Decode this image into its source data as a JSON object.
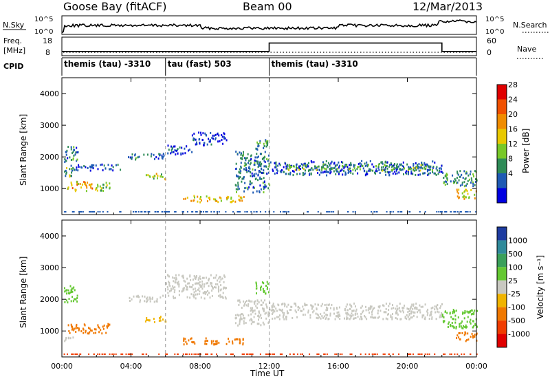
{
  "header": {
    "station": "Goose Bay (fitACF)",
    "beam": "Beam 00",
    "date": "12/Mar/2013"
  },
  "noise_panel": {
    "left_label": "N.Sky",
    "right_label": "N.Search",
    "left_ticks": [
      "10^5",
      "10^0"
    ],
    "right_ticks": [
      "10^5",
      "10^0"
    ]
  },
  "freq_panel": {
    "left_label_line1": "Freq.",
    "left_label_line2": "[MHz]",
    "right_label": "Nave",
    "left_ticks": [
      "18",
      "8"
    ],
    "right_ticks": [
      "60",
      "0"
    ]
  },
  "cpid_panel": {
    "label": "CPID",
    "segments": [
      {
        "start": 0,
        "end": 6,
        "text": "themis (tau) -3310"
      },
      {
        "start": 6,
        "end": 12,
        "text": "tau (fast) 503"
      },
      {
        "start": 12,
        "end": 24,
        "text": "themis (tau) -3310"
      }
    ]
  },
  "power_panel": {
    "ylabel": "Slant Range [km]",
    "colorbar_label": "Power [dB]",
    "colorbar_ticks": [
      "28",
      "24",
      "20",
      "16",
      "12",
      "8",
      "4"
    ],
    "colorbar_colors": [
      "#e00000",
      "#f05000",
      "#f08c00",
      "#e8c800",
      "#78c828",
      "#2e8b57",
      "#1e5ab4",
      "#0000e0"
    ]
  },
  "velocity_panel": {
    "ylabel": "Slant Range [km]",
    "colorbar_label": "Velocity [m s⁻¹]",
    "colorbar_ticks": [
      "1000",
      "500",
      "100",
      "25",
      "-25",
      "-100",
      "-500",
      "-1000"
    ],
    "colorbar_colors": [
      "#1e3ca0",
      "#2f8a9a",
      "#3aa05a",
      "#64c832",
      "#c8c8c0",
      "#f0b400",
      "#f07800",
      "#f03c00",
      "#e00000"
    ]
  },
  "xaxis": {
    "label": "Time UT",
    "ticks": [
      "00:00",
      "04:00",
      "08:00",
      "12:00",
      "16:00",
      "20:00",
      "00:00"
    ]
  },
  "yaxis": {
    "ticks": [
      "1000",
      "2000",
      "3000",
      "4000"
    ]
  },
  "chart_data": {
    "type": "heatmap",
    "title": "Goose Bay (fitACF)",
    "subtitle": "Beam 00",
    "xlabel": "Time UT",
    "ylabel": "Slant Range [km]",
    "xlim": [
      0,
      24
    ],
    "ylim": [
      180,
      4500
    ],
    "xticks": [
      0,
      4,
      8,
      12,
      16,
      20,
      24
    ],
    "yticks": [
      1000,
      2000,
      3000,
      4000
    ],
    "freq_mhz": [
      {
        "start": 0,
        "end": 6,
        "value": 10.3
      },
      {
        "start": 6,
        "end": 12,
        "value": 10.3
      },
      {
        "start": 12,
        "end": 22,
        "value": 14.8
      },
      {
        "start": 22,
        "end": 24,
        "value": 10.3
      }
    ],
    "power_regions": [
      {
        "t": [
          0.1,
          0.9
        ],
        "r": [
          1850,
          2350
        ],
        "db": 10
      },
      {
        "t": [
          0.1,
          0.8
        ],
        "r": [
          1400,
          1700
        ],
        "db": 14
      },
      {
        "t": [
          0.3,
          1.8
        ],
        "r": [
          950,
          1250
        ],
        "db": 22
      },
      {
        "t": [
          1.8,
          2.8
        ],
        "r": [
          950,
          1250
        ],
        "db": 16
      },
      {
        "t": [
          0.5,
          3.5
        ],
        "r": [
          1600,
          1800
        ],
        "db": 8
      },
      {
        "t": [
          3.8,
          6.0
        ],
        "r": [
          1950,
          2150
        ],
        "db": 10
      },
      {
        "t": [
          4.8,
          6.0
        ],
        "r": [
          1300,
          1500
        ],
        "db": 18
      },
      {
        "t": [
          6.0,
          7.5
        ],
        "r": [
          2100,
          2400
        ],
        "db": 6
      },
      {
        "t": [
          7.5,
          9.5
        ],
        "r": [
          2400,
          2800
        ],
        "db": 6
      },
      {
        "t": [
          7.0,
          10.5
        ],
        "r": [
          600,
          800
        ],
        "db": 20
      },
      {
        "t": [
          10.0,
          12.0
        ],
        "r": [
          900,
          2200
        ],
        "db": 10
      },
      {
        "t": [
          11.2,
          12.0
        ],
        "r": [
          2200,
          2600
        ],
        "db": 12
      },
      {
        "t": [
          12.0,
          22.0
        ],
        "r": [
          1450,
          1900
        ],
        "db": 8
      },
      {
        "t": [
          13.0,
          21.5
        ],
        "r": [
          1600,
          1800
        ],
        "db": 14
      },
      {
        "t": [
          22.0,
          24.0
        ],
        "r": [
          1100,
          1600
        ],
        "db": 12
      },
      {
        "t": [
          22.8,
          24.0
        ],
        "r": [
          700,
          1000
        ],
        "db": 20
      }
    ],
    "velocity_regions": [
      {
        "t": [
          0.1,
          0.9
        ],
        "r": [
          1900,
          2450
        ],
        "v": 60
      },
      {
        "t": [
          0.3,
          2.8
        ],
        "r": [
          950,
          1250
        ],
        "v": -150
      },
      {
        "t": [
          0.1,
          0.8
        ],
        "r": [
          700,
          850
        ],
        "v": 0
      },
      {
        "t": [
          3.8,
          6.0
        ],
        "r": [
          1950,
          2150
        ],
        "v": 0
      },
      {
        "t": [
          4.8,
          6.0
        ],
        "r": [
          1300,
          1500
        ],
        "v": -80
      },
      {
        "t": [
          6.0,
          9.5
        ],
        "r": [
          2050,
          2800
        ],
        "v": 0
      },
      {
        "t": [
          7.0,
          10.5
        ],
        "r": [
          600,
          800
        ],
        "v": -200
      },
      {
        "t": [
          10.0,
          12.0
        ],
        "r": [
          1200,
          2000
        ],
        "v": 0
      },
      {
        "t": [
          11.2,
          12.0
        ],
        "r": [
          2200,
          2600
        ],
        "v": 60
      },
      {
        "t": [
          12.0,
          22.0
        ],
        "r": [
          1400,
          1900
        ],
        "v": 0
      },
      {
        "t": [
          22.0,
          24.0
        ],
        "r": [
          1100,
          1700
        ],
        "v": 80
      },
      {
        "t": [
          22.8,
          24.0
        ],
        "r": [
          700,
          1000
        ],
        "v": -300
      }
    ]
  }
}
